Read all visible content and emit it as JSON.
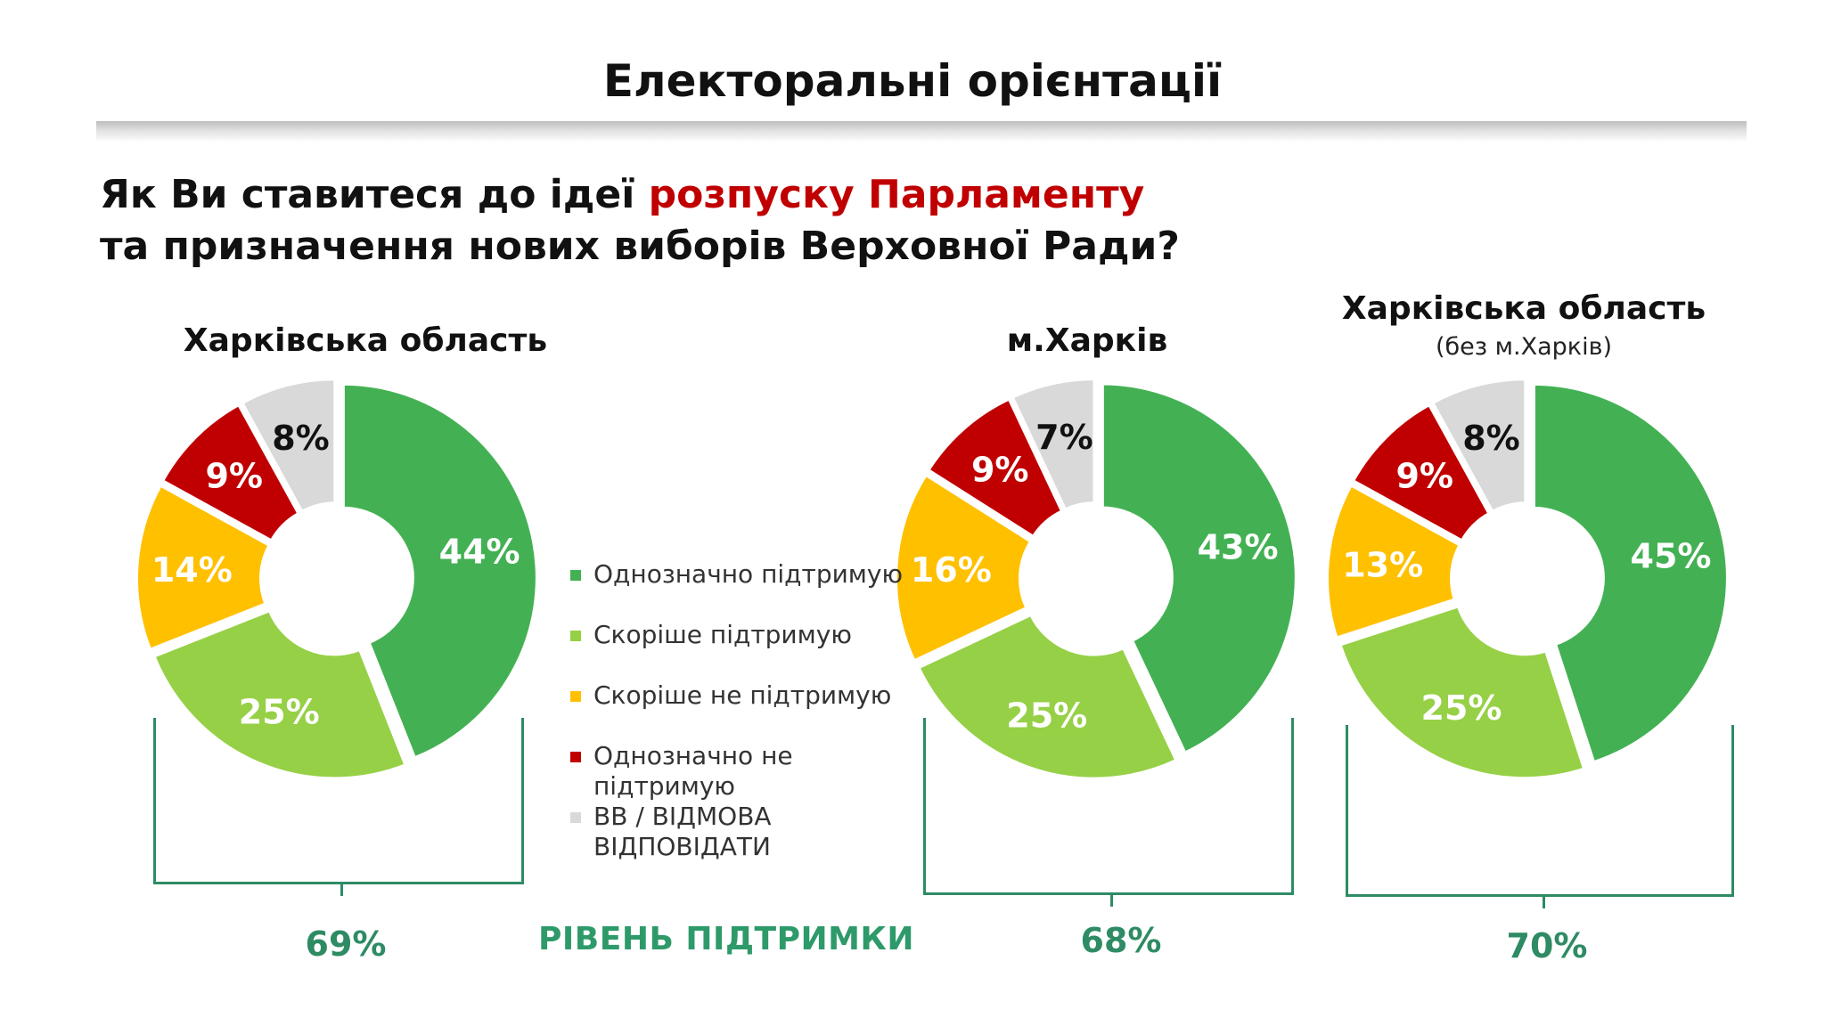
{
  "header": {
    "title": "Електоральні орієнтації"
  },
  "question": {
    "line1_before": "Як Ви ставитеся до ідеї ",
    "line1_highlight": "розпуску Парламенту",
    "line2": "та призначення нових виборів Верховної Ради?"
  },
  "legend": [
    {
      "label": "Однозначно підтримую",
      "color": "#43b153"
    },
    {
      "label": "Скоріше підтримую",
      "color": "#96d046"
    },
    {
      "label": "Скоріше не підтримую",
      "color": "#ffc000"
    },
    {
      "label": "Однозначно не підтримую",
      "color": "#c00000"
    },
    {
      "label": "ВВ / ВІДМОВА ВІДПОВІДАТИ",
      "color": "#d9d9d9"
    }
  ],
  "support_level_label": "РІВЕНЬ ПІДТРИМКИ",
  "chart_data": [
    {
      "type": "pie",
      "title": "Харківська область",
      "subtitle": "",
      "categories": [
        "Однозначно підтримую",
        "Скоріше підтримую",
        "Скоріше не підтримую",
        "Однозначно не підтримую",
        "ВВ / ВІДМОВА ВІДПОВІДАТИ"
      ],
      "values": [
        44,
        25,
        14,
        9,
        8
      ],
      "labels": [
        "44%",
        "25%",
        "14%",
        "9%",
        "8%"
      ],
      "support_total": "69%"
    },
    {
      "type": "pie",
      "title": "м.Харків",
      "subtitle": "",
      "categories": [
        "Однозначно підтримую",
        "Скоріше підтримую",
        "Скоріше не підтримую",
        "Однозначно не підтримую",
        "ВВ / ВІДМОВА ВІДПОВІДАТИ"
      ],
      "values": [
        43,
        25,
        16,
        9,
        7
      ],
      "labels": [
        "43%",
        "25%",
        "16%",
        "9%",
        "7%"
      ],
      "support_total": "68%"
    },
    {
      "type": "pie",
      "title": "Харківська область",
      "subtitle": "(без м.Харків)",
      "categories": [
        "Однозначно підтримую",
        "Скоріше підтримую",
        "Скоріше не підтримую",
        "Однозначно не підтримую",
        "ВВ / ВІДМОВА ВІДПОВІДАТИ"
      ],
      "values": [
        45,
        25,
        13,
        9,
        8
      ],
      "labels": [
        "45%",
        "25%",
        "13%",
        "9%",
        "8%"
      ],
      "support_total": "70%"
    }
  ]
}
